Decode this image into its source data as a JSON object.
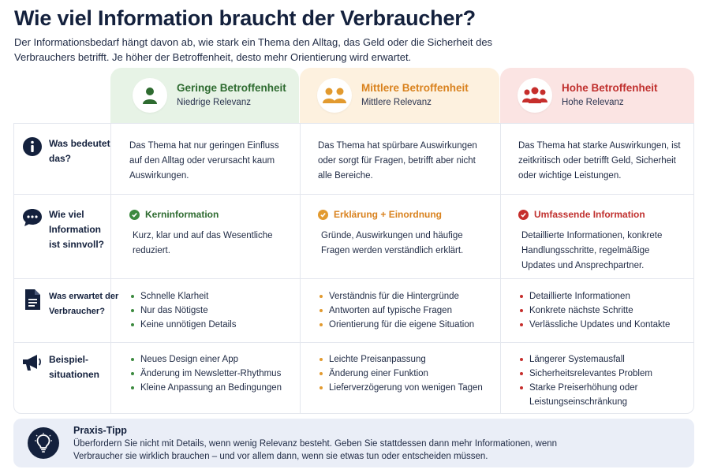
{
  "title": "Wie viel Information braucht der Verbraucher?",
  "subtitle": "Der Informationsbedarf hängt davon ab, wie stark ein Thema den Alltag, das Geld oder die Sicherheit des Verbrauchers betrifft. Je höher der Betroffenheit, desto mehr Orientierung wird erwartet.",
  "colors": {
    "green": "#3c8a3f",
    "orange": "#e29a2f",
    "red": "#c62e2c",
    "navy": "#14213d"
  },
  "columns": [
    {
      "title": "Geringe Betroffenheit",
      "subtitle": "Niedrige Relevanz",
      "icon": "single-person-icon"
    },
    {
      "title": "Mittlere Betroffenheit",
      "subtitle": "Mittlere Relevanz",
      "icon": "two-people-icon"
    },
    {
      "title": "Hohe Betroffenheit",
      "subtitle": "Hohe Relevanz",
      "icon": "group-people-icon"
    }
  ],
  "rows": {
    "meaning": {
      "label": "Was bedeutet das?",
      "icon": "info-icon",
      "cells": [
        "Das Thema hat nur geringen Einfluss auf den Alltag oder verursacht kaum Auswirkungen.",
        "Das Thema hat spürbare Auswirkungen oder sorgt für Fragen, betrifft aber nicht alle Bereiche.",
        "Das Thema hat starke Auswirkungen, ist zeitkritisch oder betrifft Geld, Sicherheit oder wichtige Leistungen."
      ]
    },
    "amount": {
      "label": "Wie viel Information ist sinnvoll?",
      "icon": "chat-bubble-icon",
      "cells": [
        {
          "heading": "Kerninformation",
          "text": "Kurz, klar und auf das Wesentliche reduziert."
        },
        {
          "heading": "Erklärung + Einordnung",
          "text": "Gründe, Auswirkungen und häufige Fragen werden verständlich erklärt."
        },
        {
          "heading": "Umfassende Information",
          "text": "Detaillierte Informationen, konkrete Handlungsschritte, regelmäßige Updates und Ansprechpartner."
        }
      ]
    },
    "expectation": {
      "label": "Was erwartet der Verbraucher?",
      "icon": "document-icon",
      "cells": [
        [
          "Schnelle Klarheit",
          "Nur das Nötigste",
          "Keine unnötigen Details"
        ],
        [
          "Verständnis für die Hintergründe",
          "Antworten auf typische Fragen",
          "Orientierung für die eigene Situation"
        ],
        [
          "Detaillierte Informationen",
          "Konkrete nächste Schritte",
          "Verlässliche Updates und Kontakte"
        ]
      ]
    },
    "examples": {
      "label": "Beispiel-situationen",
      "icon": "megaphone-icon",
      "cells": [
        [
          "Neues Design einer App",
          "Änderung im Newsletter-Rhythmus",
          "Kleine Anpassung an Bedingungen"
        ],
        [
          "Leichte Preisanpassung",
          "Änderung einer Funktion",
          "Lieferverzögerung von wenigen Tagen"
        ],
        [
          "Längerer Systemausfall",
          "Sicherheitsrelevantes Problem",
          "Starke Preiserhöhung oder Leistungseinschränkung"
        ]
      ]
    }
  },
  "tip": {
    "title": "Praxis-Tipp",
    "text": "Überfordern Sie nicht mit Details, wenn wenig Relevanz besteht. Geben Sie stattdessen dann mehr Informationen, wenn Verbraucher sie wirklich brauchen – und vor allem dann, wenn sie etwas tun oder entscheiden müssen.",
    "icon": "lightbulb-icon"
  }
}
